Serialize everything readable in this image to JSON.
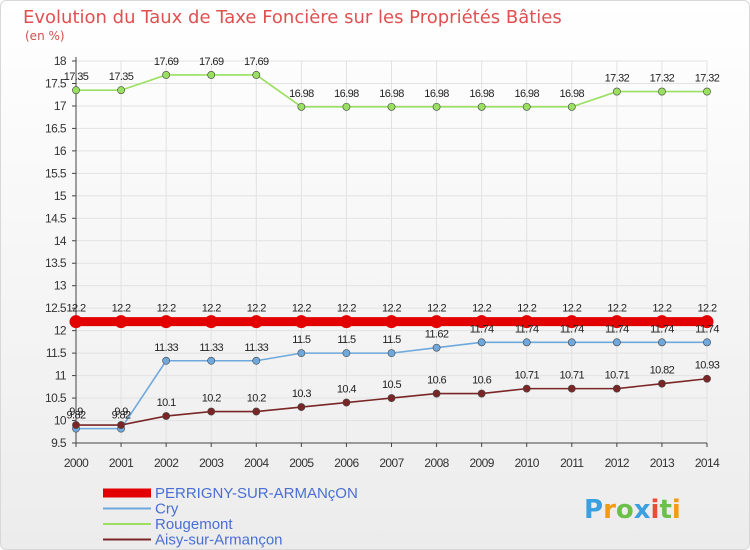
{
  "chart_data": {
    "type": "line",
    "title": "Evolution du Taux de Taxe Foncière sur les Propriétés Bâties",
    "ylabel": "(en %)",
    "xlabel": "",
    "x": [
      "2000",
      "2001",
      "2002",
      "2003",
      "2004",
      "2005",
      "2006",
      "2007",
      "2008",
      "2009",
      "2010",
      "2011",
      "2012",
      "2013",
      "2014"
    ],
    "ylim": [
      9.5,
      18
    ],
    "yticks": [
      "9.5",
      "10",
      "10.5",
      "11",
      "11.5",
      "12",
      "12.5",
      "13",
      "13.5",
      "14",
      "14.5",
      "15",
      "15.5",
      "16",
      "16.5",
      "17",
      "17.5",
      "18"
    ],
    "grid": true,
    "legend_position": "bottom-left",
    "series": [
      {
        "name": "PERRIGNY-SUR-ARMANçON",
        "color": "#e30000",
        "values": [
          12.2,
          12.2,
          12.2,
          12.2,
          12.2,
          12.2,
          12.2,
          12.2,
          12.2,
          12.2,
          12.2,
          12.2,
          12.2,
          12.2,
          12.2
        ],
        "labels": [
          "12.2",
          "12.2",
          "12.2",
          "12.2",
          "12.2",
          "12.2",
          "12.2",
          "12.2",
          "12.2",
          "12.2",
          "12.2",
          "12.2",
          "12.2",
          "12.2",
          "12.2"
        ]
      },
      {
        "name": "Cry",
        "color": "#6fa8dc",
        "values": [
          9.82,
          9.82,
          11.33,
          11.33,
          11.33,
          11.5,
          11.5,
          11.5,
          11.62,
          11.74,
          11.74,
          11.74,
          11.74,
          11.74,
          11.74
        ],
        "labels": [
          "9.82",
          "9.82",
          "11.33",
          "11.33",
          "11.33",
          "11.5",
          "11.5",
          "11.5",
          "11.62",
          "11.74",
          "11.74",
          "11.74",
          "11.74",
          "11.74",
          "11.74"
        ]
      },
      {
        "name": "Rougemont",
        "color": "#99e060",
        "values": [
          17.35,
          17.35,
          17.69,
          17.69,
          17.69,
          16.98,
          16.98,
          16.98,
          16.98,
          16.98,
          16.98,
          16.98,
          17.32,
          17.32,
          17.32
        ],
        "labels": [
          "17.35",
          "17.35",
          "17.69",
          "17.69",
          "17.69",
          "16.98",
          "16.98",
          "16.98",
          "16.98",
          "16.98",
          "16.98",
          "16.98",
          "17.32",
          "17.32",
          "17.32"
        ]
      },
      {
        "name": "Aisy-sur-Armançon",
        "color": "#7a2626",
        "values": [
          9.9,
          9.9,
          10.1,
          10.2,
          10.2,
          10.3,
          10.4,
          10.5,
          10.6,
          10.6,
          10.71,
          10.71,
          10.71,
          10.82,
          10.93
        ],
        "labels": [
          "9.9",
          "9.9",
          "10.1",
          "10.2",
          "10.2",
          "10.3",
          "10.4",
          "10.5",
          "10.6",
          "10.6",
          "10.71",
          "10.71",
          "10.71",
          "10.82",
          "10.93"
        ]
      }
    ]
  },
  "colors": {
    "title": "#e05050",
    "grid": "#e2e2e2",
    "axis": "#444444",
    "legend_text": "#4a6fd4"
  },
  "logo": {
    "letters": [
      "P",
      "r",
      "o",
      "x",
      "i",
      "t",
      "i"
    ],
    "colors": [
      "#3aa0e0",
      "#f39c12",
      "#6cc04a",
      "#3aa0e0",
      "#e74c3c",
      "#6cc04a",
      "#f39c12"
    ]
  }
}
